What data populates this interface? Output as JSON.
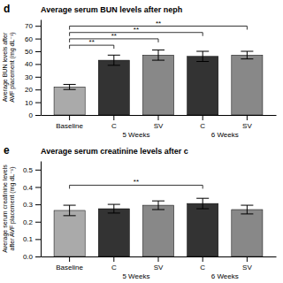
{
  "chart_data": [
    {
      "type": "bar",
      "panel": "d",
      "title": "Average serum BUN levels after neph",
      "ylabel": "Average BUN levels after\nAVF placement (mg dL⁻¹)",
      "categories": [
        "Baseline",
        "C",
        "SV",
        "C",
        "SV"
      ],
      "values": [
        22,
        43,
        47,
        46,
        47
      ],
      "errors": [
        2,
        4,
        4,
        4,
        3
      ],
      "colors": [
        "#aaaaaa",
        "#333333",
        "#888888",
        "#333333",
        "#888888"
      ],
      "ylim": [
        0,
        75
      ],
      "yticks": [
        0,
        10,
        20,
        30,
        40,
        50,
        60,
        70
      ],
      "grid": false,
      "groups": [
        {
          "label": "5 Weeks",
          "categories": [
            1,
            2
          ]
        },
        {
          "label": "6 Weeks",
          "categories": [
            3,
            4
          ]
        }
      ],
      "brackets": [
        {
          "categories": [
            0,
            1
          ],
          "y": 52,
          "label": "**"
        },
        {
          "categories": [
            0,
            2
          ],
          "y": 57,
          "label": "**"
        },
        {
          "categories": [
            0,
            3
          ],
          "y": 62,
          "label": "**"
        },
        {
          "categories": [
            0,
            4
          ],
          "y": 67,
          "label": "**"
        }
      ]
    },
    {
      "type": "bar",
      "panel": "e",
      "title": "Average serum creatinine levels after c",
      "ylabel": "Average serum creatinine levels\nafter AVF placement (mg dL⁻¹)",
      "categories": [
        "Baseline",
        "C",
        "SV",
        "C",
        "SV"
      ],
      "values": [
        0.265,
        0.275,
        0.295,
        0.305,
        0.27
      ],
      "errors": [
        0.03,
        0.025,
        0.025,
        0.03,
        0.025
      ],
      "colors": [
        "#aaaaaa",
        "#333333",
        "#888888",
        "#333333",
        "#888888"
      ],
      "ylim": [
        0,
        0.55
      ],
      "yticks": [
        {
          "value": 0,
          "label": "0.0"
        },
        0.1,
        0.2,
        0.3,
        0.4,
        0.5
      ],
      "grid": false,
      "groups": [
        {
          "label": "5 Weeks",
          "categories": [
            1,
            2
          ]
        },
        {
          "label": "6 Weeks",
          "categories": [
            3,
            4
          ]
        }
      ],
      "brackets": [
        {
          "categories": [
            0,
            3
          ],
          "y": 0.39,
          "label": "**"
        }
      ]
    }
  ]
}
